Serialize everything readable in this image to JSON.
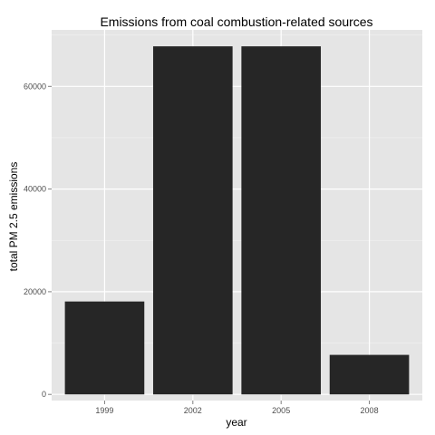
{
  "chart_data": {
    "type": "bar",
    "title": "Emissions from coal combustion-related sources",
    "xlabel": "year",
    "ylabel": "total PM 2.5 emissions",
    "categories": [
      "1999",
      "2002",
      "2005",
      "2008"
    ],
    "values": [
      18100,
      67800,
      67800,
      7700
    ],
    "ylim": [
      -1200,
      71000
    ],
    "yticks": [
      0,
      20000,
      40000,
      60000
    ],
    "ytick_labels": [
      "0",
      "20000",
      "40000",
      "60000"
    ],
    "grid": true,
    "legend": "none",
    "colors": {
      "panel_background": "#e5e5e5",
      "grid_major": "#ffffff",
      "grid_minor": "#f2f2f2",
      "bar_fill": "#262626",
      "tick_text": "#4d4d4d",
      "tick_mark": "#7f7f7f"
    }
  }
}
